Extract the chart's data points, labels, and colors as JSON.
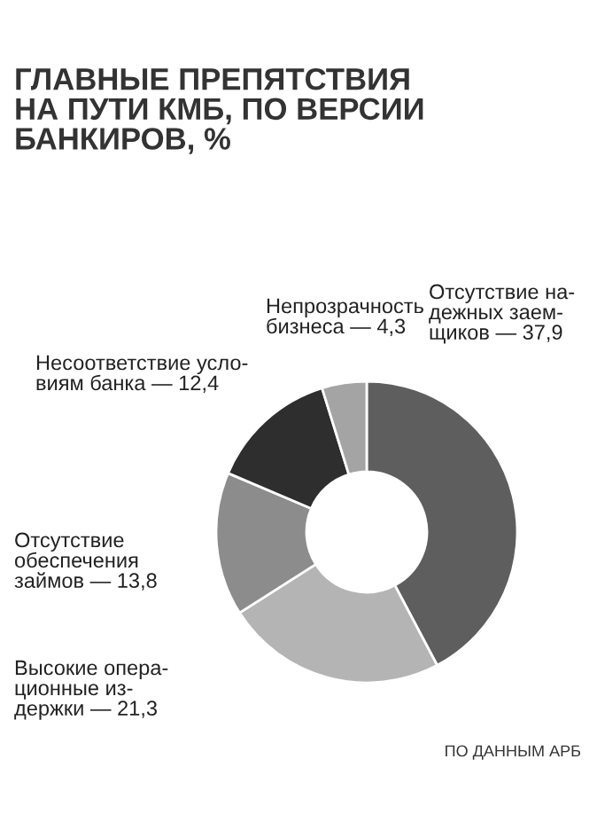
{
  "chart_data": {
    "type": "donut",
    "title": "ГЛАВНЫЕ ПРЕПЯТСТВИЯ\nНА ПУТИ КМБ, ПО ВЕРСИИ\nБАНКИРОВ, %",
    "categories": [
      "Отсутствие на-\nдежных заем-\nщиков —",
      "Высокие опера-\nционные из-\nдержки —",
      "Отсутствие\nобеспечения\nзаймов —",
      "Несоответствие усло-\nвиям банка —",
      "Непрозрачность\nбизнеса —"
    ],
    "values": [
      37.9,
      21.3,
      13.8,
      12.4,
      4.3
    ],
    "value_labels": [
      "37,9",
      "21,3",
      "13,8",
      "12,4",
      "4,3"
    ],
    "colors": [
      "#5e5e5e",
      "#b4b4b4",
      "#8c8c8c",
      "#2e2e2e",
      "#a4a4a4"
    ],
    "annotations": [
      "ПО ДАННЫМ АРБ"
    ]
  }
}
